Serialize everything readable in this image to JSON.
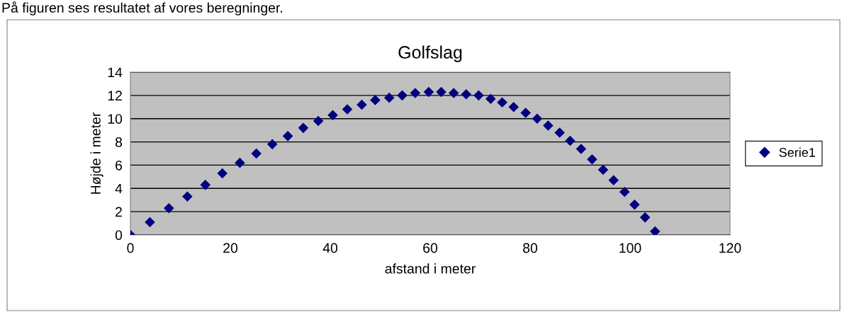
{
  "chart_data": {
    "type": "scatter",
    "title": "Golfslag",
    "xlabel": "afstand i meter",
    "ylabel": "Højde i meter",
    "annotations": [
      "På figuren ses resultatet af vores beregninger."
    ],
    "x": [
      0,
      3.9,
      7.7,
      11.4,
      15.0,
      18.4,
      21.9,
      25.2,
      28.4,
      31.5,
      34.6,
      37.6,
      40.5,
      43.4,
      46.3,
      49.0,
      51.8,
      54.4,
      57.0,
      59.7,
      62.2,
      64.7,
      67.2,
      69.7,
      72.1,
      74.4,
      76.7,
      79.1,
      81.4,
      83.6,
      85.9,
      88.0,
      90.2,
      92.4,
      94.6,
      96.7,
      98.9,
      100.9,
      103.0,
      105.0
    ],
    "series": [
      {
        "name": "Serie1",
        "color": "#000080",
        "values": [
          0,
          1.1,
          2.3,
          3.3,
          4.3,
          5.3,
          6.2,
          7.0,
          7.8,
          8.5,
          9.2,
          9.8,
          10.3,
          10.8,
          11.2,
          11.6,
          11.8,
          12.0,
          12.2,
          12.3,
          12.3,
          12.2,
          12.1,
          12.0,
          11.7,
          11.4,
          11.0,
          10.5,
          10.0,
          9.4,
          8.8,
          8.1,
          7.4,
          6.5,
          5.6,
          4.7,
          3.7,
          2.6,
          1.5,
          0.3
        ]
      }
    ],
    "xlim": [
      0,
      120
    ],
    "xticks": [
      0,
      20,
      40,
      60,
      80,
      100,
      120
    ],
    "ylim": [
      0,
      14
    ],
    "yticks": [
      0,
      2,
      4,
      6,
      8,
      10,
      12,
      14
    ],
    "grid": "y",
    "legend": "right",
    "marker": "diamond"
  }
}
